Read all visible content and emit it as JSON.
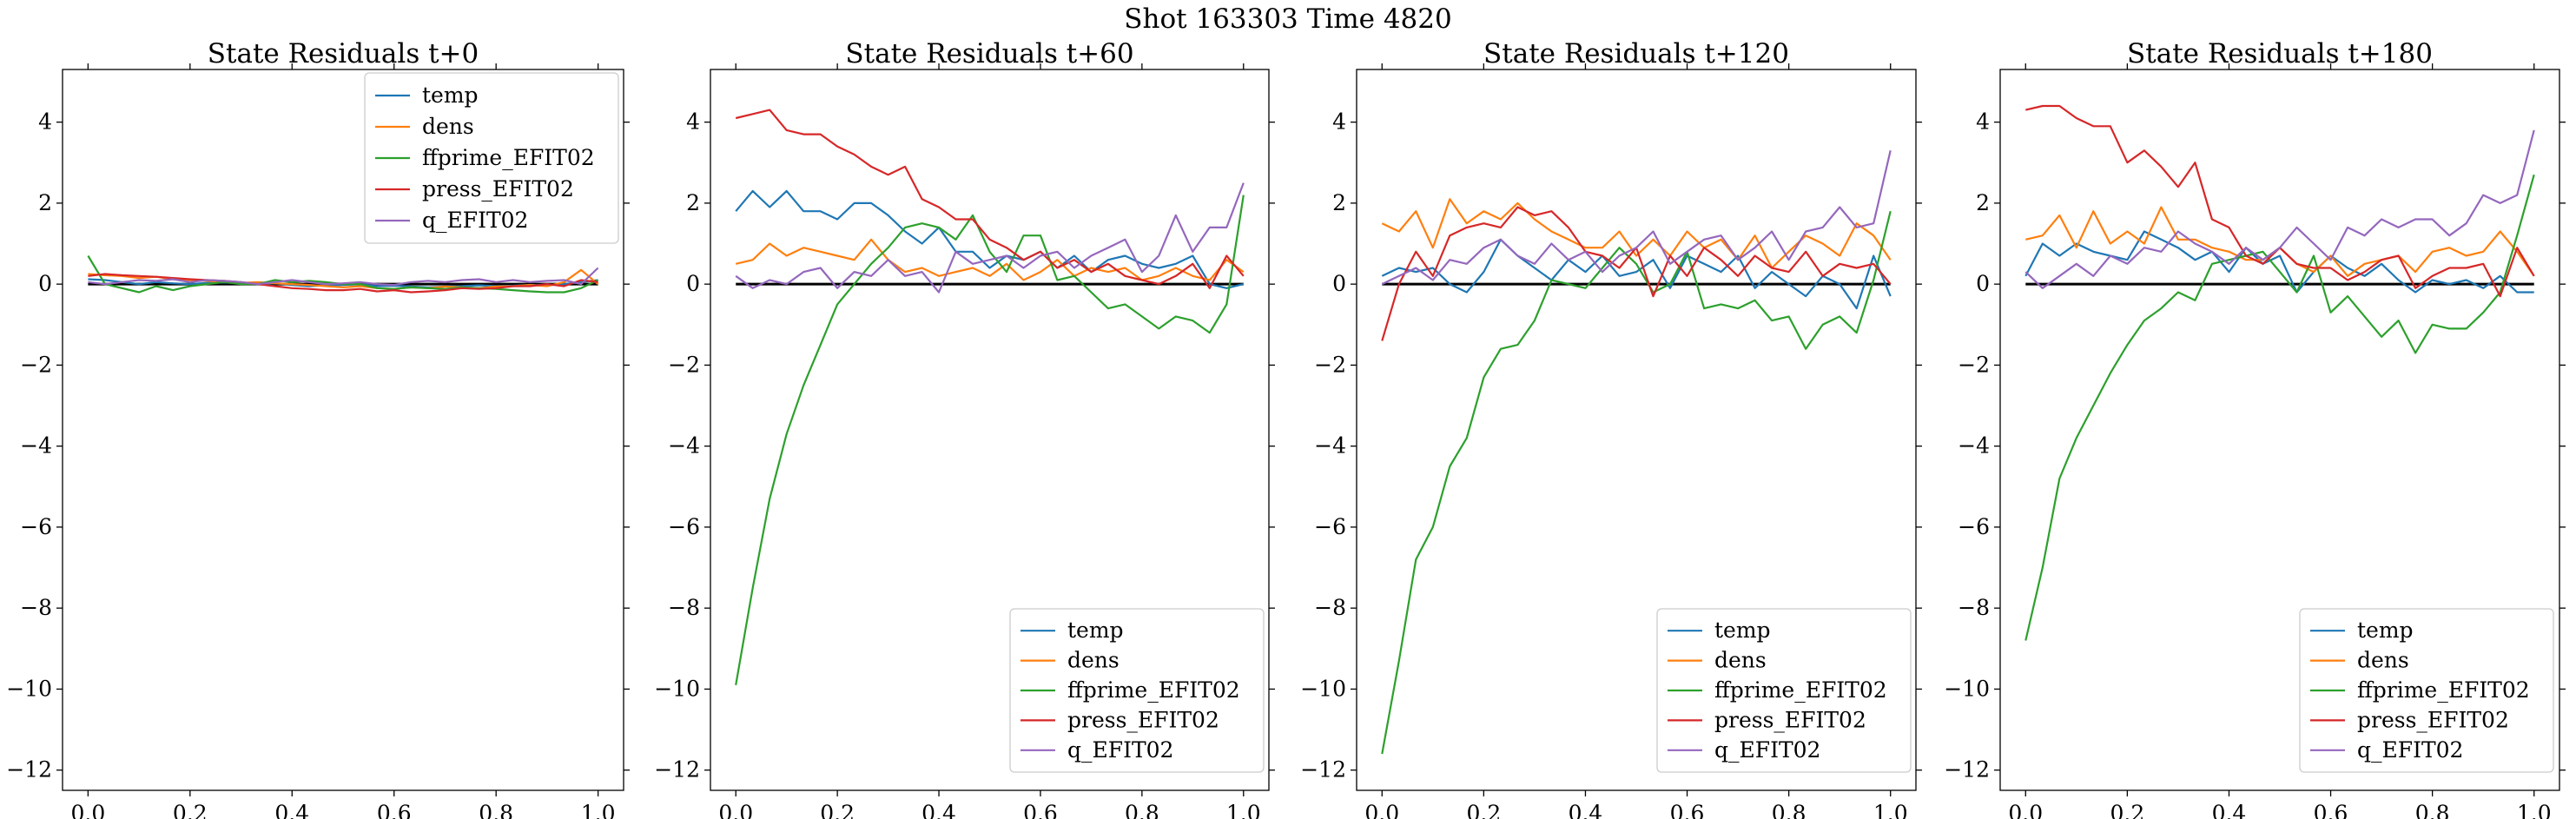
{
  "figure": {
    "suptitle": "Shot 163303   Time 4820"
  },
  "chart_data": [
    {
      "type": "line",
      "title": "State Residuals t+0",
      "xlim": [
        -0.05,
        1.05
      ],
      "ylim": [
        -12.5,
        5.3
      ],
      "xticks": [
        "0.0",
        "0.2",
        "0.4",
        "0.6",
        "0.8",
        "1.0"
      ],
      "yticks": [
        "4",
        "2",
        "0",
        "−2",
        "−4",
        "−6",
        "−8",
        "−10",
        "−12"
      ],
      "legend_position": "upper right",
      "zero_line": true,
      "series": [
        {
          "name": "temp",
          "color": "#1f77b4",
          "values": [
            0.12,
            0.1,
            0.05,
            0.0,
            0.05,
            0.02,
            0.0,
            0.03,
            0.04,
            0.02,
            0.0,
            0.02,
            -0.02,
            -0.05,
            -0.03,
            -0.02,
            0.0,
            -0.05,
            -0.04,
            -0.06,
            -0.08,
            -0.06,
            -0.05,
            -0.03,
            -0.05,
            -0.04,
            -0.02,
            -0.03,
            0.0,
            0.05,
            0.1
          ]
        },
        {
          "name": "dens",
          "color": "#ff7f0e",
          "values": [
            0.25,
            0.22,
            0.2,
            0.15,
            0.18,
            0.12,
            0.1,
            0.08,
            0.05,
            0.03,
            0.05,
            0.02,
            0.0,
            -0.02,
            -0.05,
            -0.08,
            -0.05,
            -0.1,
            -0.12,
            -0.08,
            -0.1,
            -0.06,
            -0.08,
            -0.1,
            -0.06,
            -0.05,
            -0.02,
            -0.05,
            0.05,
            0.35,
            0.0
          ]
        },
        {
          "name": "ffprime_EFIT02",
          "color": "#2ca02c",
          "values": [
            0.7,
            0.0,
            -0.1,
            -0.2,
            -0.05,
            -0.15,
            -0.05,
            0.0,
            0.05,
            0.0,
            0.0,
            0.1,
            0.05,
            0.08,
            0.05,
            0.0,
            0.0,
            -0.1,
            -0.12,
            -0.08,
            -0.1,
            -0.12,
            -0.08,
            -0.1,
            -0.12,
            -0.15,
            -0.18,
            -0.2,
            -0.2,
            -0.1,
            0.1
          ]
        },
        {
          "name": "press_EFIT02",
          "color": "#d62728",
          "values": [
            0.2,
            0.25,
            0.22,
            0.2,
            0.18,
            0.15,
            0.12,
            0.1,
            0.08,
            0.05,
            0.0,
            -0.05,
            -0.1,
            -0.12,
            -0.15,
            -0.15,
            -0.12,
            -0.18,
            -0.15,
            -0.2,
            -0.18,
            -0.15,
            -0.1,
            -0.12,
            -0.1,
            -0.05,
            -0.05,
            0.0,
            -0.05,
            0.1,
            0.05
          ]
        },
        {
          "name": "q_EFIT02",
          "color": "#9467bd",
          "values": [
            0.05,
            0.0,
            0.05,
            0.1,
            0.08,
            0.12,
            0.05,
            0.1,
            0.08,
            0.05,
            0.0,
            0.05,
            0.1,
            0.05,
            0.0,
            0.02,
            0.05,
            0.0,
            -0.02,
            0.05,
            0.08,
            0.05,
            0.1,
            0.12,
            0.05,
            0.1,
            0.05,
            0.08,
            0.1,
            0.0,
            0.4
          ]
        }
      ]
    },
    {
      "type": "line",
      "title": "State Residuals t+60",
      "xlim": [
        -0.05,
        1.05
      ],
      "ylim": [
        -12.5,
        5.3
      ],
      "xticks": [
        "0.0",
        "0.2",
        "0.4",
        "0.6",
        "0.8",
        "1.0"
      ],
      "yticks": [
        "4",
        "2",
        "0",
        "−2",
        "−4",
        "−6",
        "−8",
        "−10",
        "−12"
      ],
      "legend_position": "lower right",
      "zero_line": true,
      "series": [
        {
          "name": "temp",
          "color": "#1f77b4",
          "values": [
            1.8,
            2.3,
            1.9,
            2.3,
            1.8,
            1.8,
            1.6,
            2.0,
            2.0,
            1.7,
            1.3,
            1.0,
            1.4,
            0.8,
            0.8,
            0.4,
            0.7,
            0.6,
            0.8,
            0.4,
            0.7,
            0.3,
            0.6,
            0.7,
            0.5,
            0.4,
            0.5,
            0.7,
            0.0,
            -0.1,
            0.0
          ]
        },
        {
          "name": "dens",
          "color": "#ff7f0e",
          "values": [
            0.5,
            0.6,
            1.0,
            0.7,
            0.9,
            0.8,
            0.7,
            0.6,
            1.1,
            0.6,
            0.3,
            0.4,
            0.2,
            0.3,
            0.4,
            0.2,
            0.5,
            0.1,
            0.3,
            0.6,
            0.2,
            0.4,
            0.3,
            0.4,
            0.1,
            0.2,
            0.4,
            0.2,
            0.1,
            0.6,
            0.3
          ]
        },
        {
          "name": "ffprime_EFIT02",
          "color": "#2ca02c",
          "values": [
            -9.9,
            -7.5,
            -5.3,
            -3.7,
            -2.5,
            -1.5,
            -0.5,
            0.0,
            0.5,
            0.9,
            1.4,
            1.5,
            1.4,
            1.1,
            1.7,
            0.8,
            0.3,
            1.2,
            1.2,
            0.1,
            0.2,
            -0.2,
            -0.6,
            -0.5,
            -0.8,
            -1.1,
            -0.8,
            -0.9,
            -1.2,
            -0.5,
            2.2
          ]
        },
        {
          "name": "press_EFIT02",
          "color": "#d62728",
          "values": [
            4.1,
            4.2,
            4.3,
            3.8,
            3.7,
            3.7,
            3.4,
            3.2,
            2.9,
            2.7,
            2.9,
            2.1,
            1.9,
            1.6,
            1.6,
            1.1,
            0.9,
            0.6,
            0.8,
            0.4,
            0.6,
            0.3,
            0.5,
            0.2,
            0.1,
            0.0,
            0.2,
            0.5,
            -0.1,
            0.7,
            0.2
          ]
        },
        {
          "name": "q_EFIT02",
          "color": "#9467bd",
          "values": [
            0.2,
            -0.1,
            0.1,
            0.0,
            0.3,
            0.4,
            -0.1,
            0.3,
            0.2,
            0.6,
            0.2,
            0.3,
            -0.2,
            0.8,
            0.5,
            0.6,
            0.7,
            0.4,
            0.7,
            0.8,
            0.4,
            0.7,
            0.9,
            1.1,
            0.3,
            0.7,
            1.7,
            0.8,
            1.4,
            1.4,
            2.5
          ]
        }
      ]
    },
    {
      "type": "line",
      "title": "State Residuals t+120",
      "xlim": [
        -0.05,
        1.05
      ],
      "ylim": [
        -12.5,
        5.3
      ],
      "xticks": [
        "0.0",
        "0.2",
        "0.4",
        "0.6",
        "0.8",
        "1.0"
      ],
      "yticks": [
        "4",
        "2",
        "0",
        "−2",
        "−4",
        "−6",
        "−8",
        "−10",
        "−12"
      ],
      "legend_position": "lower right",
      "zero_line": true,
      "series": [
        {
          "name": "temp",
          "color": "#1f77b4",
          "values": [
            0.2,
            0.4,
            0.3,
            0.4,
            0.0,
            -0.2,
            0.3,
            1.1,
            0.7,
            0.4,
            0.1,
            0.6,
            0.3,
            0.7,
            0.2,
            0.3,
            0.6,
            -0.1,
            0.7,
            0.5,
            0.3,
            0.7,
            -0.1,
            0.3,
            0.0,
            -0.3,
            0.2,
            0.0,
            -0.6,
            0.7,
            -0.3
          ]
        },
        {
          "name": "dens",
          "color": "#ff7f0e",
          "values": [
            1.5,
            1.3,
            1.8,
            0.9,
            2.1,
            1.5,
            1.8,
            1.6,
            2.0,
            1.6,
            1.3,
            1.1,
            0.9,
            0.9,
            1.3,
            0.7,
            1.1,
            0.7,
            1.3,
            0.9,
            1.1,
            0.6,
            1.2,
            0.4,
            0.8,
            1.2,
            1.0,
            0.7,
            1.5,
            1.2,
            0.6
          ]
        },
        {
          "name": "ffprime_EFIT02",
          "color": "#2ca02c",
          "values": [
            -11.6,
            -9.3,
            -6.8,
            -6.0,
            -4.5,
            -3.8,
            -2.3,
            -1.6,
            -1.5,
            -0.9,
            0.1,
            0.0,
            -0.1,
            0.4,
            0.9,
            0.5,
            -0.2,
            0.0,
            0.8,
            -0.6,
            -0.5,
            -0.6,
            -0.4,
            -0.9,
            -0.8,
            -1.6,
            -1.0,
            -0.8,
            -1.2,
            0.1,
            1.8
          ]
        },
        {
          "name": "press_EFIT02",
          "color": "#d62728",
          "values": [
            -1.4,
            0.0,
            0.8,
            0.2,
            1.2,
            1.4,
            1.5,
            1.4,
            1.9,
            1.7,
            1.8,
            1.4,
            0.8,
            0.7,
            0.4,
            0.9,
            -0.3,
            0.7,
            0.2,
            0.9,
            0.6,
            0.2,
            0.7,
            0.4,
            0.3,
            0.8,
            0.2,
            0.5,
            0.4,
            0.5,
            0.0
          ]
        },
        {
          "name": "q_EFIT02",
          "color": "#9467bd",
          "values": [
            0.0,
            0.2,
            0.4,
            0.1,
            0.6,
            0.5,
            0.9,
            1.1,
            0.7,
            0.5,
            1.0,
            0.6,
            0.8,
            0.3,
            0.7,
            0.9,
            1.3,
            0.5,
            0.8,
            1.1,
            1.2,
            0.6,
            0.9,
            1.3,
            0.6,
            1.3,
            1.4,
            1.9,
            1.4,
            1.5,
            3.3
          ]
        }
      ]
    },
    {
      "type": "line",
      "title": "State Residuals t+180",
      "xlim": [
        -0.05,
        1.05
      ],
      "ylim": [
        -12.5,
        5.3
      ],
      "xticks": [
        "0.0",
        "0.2",
        "0.4",
        "0.6",
        "0.8",
        "1.0"
      ],
      "yticks": [
        "4",
        "2",
        "0",
        "−2",
        "−4",
        "−6",
        "−8",
        "−10",
        "−12"
      ],
      "legend_position": "lower right",
      "zero_line": true,
      "series": [
        {
          "name": "temp",
          "color": "#1f77b4",
          "values": [
            0.2,
            1.0,
            0.7,
            1.0,
            0.8,
            0.7,
            0.6,
            1.3,
            1.1,
            0.9,
            0.6,
            0.8,
            0.3,
            0.9,
            0.5,
            0.7,
            -0.2,
            0.3,
            0.7,
            0.4,
            0.2,
            0.5,
            0.1,
            -0.2,
            0.1,
            0.0,
            0.1,
            -0.1,
            0.2,
            -0.2,
            -0.2
          ]
        },
        {
          "name": "dens",
          "color": "#ff7f0e",
          "values": [
            1.1,
            1.2,
            1.7,
            0.9,
            1.8,
            1.0,
            1.3,
            1.0,
            1.9,
            1.1,
            1.1,
            0.9,
            0.8,
            0.6,
            0.6,
            0.9,
            0.5,
            0.3,
            0.7,
            0.2,
            0.5,
            0.6,
            0.7,
            0.3,
            0.8,
            0.9,
            0.7,
            0.8,
            1.3,
            0.8,
            0.2
          ]
        },
        {
          "name": "ffprime_EFIT02",
          "color": "#2ca02c",
          "values": [
            -8.8,
            -7.0,
            -4.8,
            -3.8,
            -3.0,
            -2.2,
            -1.5,
            -0.9,
            -0.6,
            -0.2,
            -0.4,
            0.5,
            0.6,
            0.7,
            0.8,
            0.3,
            -0.2,
            0.7,
            -0.7,
            -0.3,
            -0.8,
            -1.3,
            -0.9,
            -1.7,
            -1.0,
            -1.1,
            -1.1,
            -0.7,
            -0.2,
            1.2,
            2.7
          ]
        },
        {
          "name": "press_EFIT02",
          "color": "#d62728",
          "values": [
            4.3,
            4.4,
            4.4,
            4.1,
            3.9,
            3.9,
            3.0,
            3.3,
            2.9,
            2.4,
            3.0,
            1.6,
            1.4,
            0.7,
            0.5,
            0.9,
            0.5,
            0.4,
            0.4,
            0.1,
            0.3,
            0.6,
            0.7,
            -0.1,
            0.2,
            0.4,
            0.4,
            0.5,
            -0.3,
            0.9,
            0.2
          ]
        },
        {
          "name": "q_EFIT02",
          "color": "#9467bd",
          "values": [
            0.3,
            -0.1,
            0.2,
            0.5,
            0.2,
            0.7,
            0.5,
            0.9,
            0.8,
            1.3,
            1.0,
            0.8,
            0.5,
            0.9,
            0.6,
            0.9,
            1.4,
            1.0,
            0.6,
            1.4,
            1.2,
            1.6,
            1.4,
            1.6,
            1.6,
            1.2,
            1.5,
            2.2,
            2.0,
            2.2,
            3.8
          ]
        }
      ]
    }
  ]
}
